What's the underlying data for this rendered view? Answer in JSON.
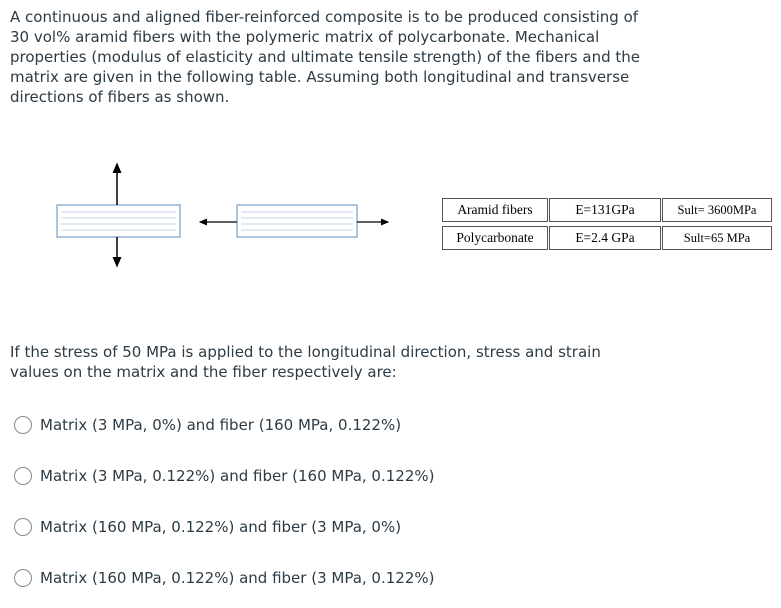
{
  "question": {
    "lines": [
      "A continuous and aligned fiber-reinforced composite is to be produced consisting of",
      "30 vol% aramid fibers with the polymeric matrix of polycarbonate. Mechanical",
      "properties (modulus of elasticity and ultimate tensile strength) of the fibers and the",
      "matrix are given in the following table. Assuming both longitudinal and transverse",
      "directions of fibers as shown."
    ]
  },
  "table": {
    "rows": [
      [
        "Aramid fibers",
        "E=131GPa",
        "Sult= 3600MPa"
      ],
      [
        "Polycarbonate",
        "E=2.4 GPa",
        "Sult=65 MPa"
      ]
    ]
  },
  "prompt": {
    "lines": [
      "If the stress of 50 MPa is applied to the longitudinal direction, stress and strain",
      "values on the matrix and the fiber respectively are:"
    ]
  },
  "options": [
    "Matrix (3 MPa, 0%) and fiber (160 MPa, 0.122%)",
    "Matrix (3 MPa, 0.122%) and fiber (160 MPa, 0.122%)",
    "Matrix (160 MPa, 0.122%) and fiber (3 MPa, 0%)",
    "Matrix (160 MPa, 0.122%) and fiber (3 MPa, 0.122%)"
  ]
}
